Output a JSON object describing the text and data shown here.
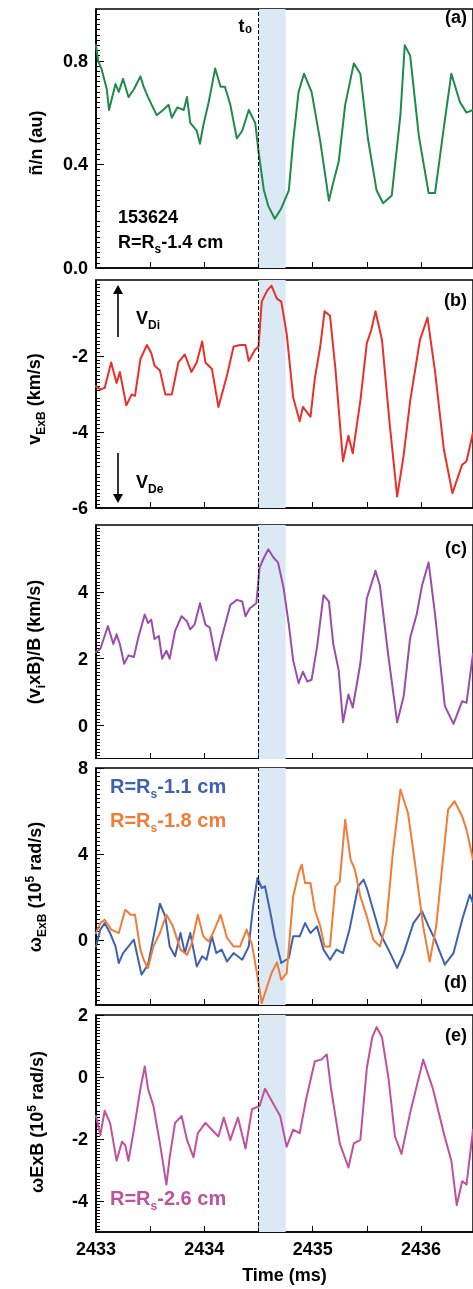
{
  "chart_data": [
    {
      "type": "line",
      "ylabel": "ñ/n (au)",
      "annotations": [
        "(a)",
        "153624",
        "R=R$_{s}$-1.4 cm"
      ],
      "marker": "none",
      "line_style": "solid",
      "tick_labels": "y",
      "xlim": [
        2433,
        2436.48
      ],
      "xticks": [
        2433,
        {
          "value": 2433.5,
          "label": null
        },
        2434,
        {
          "value": 2434.5,
          "label": null
        },
        2435,
        {
          "value": 2435.5,
          "label": null
        },
        2436
      ],
      "ylim": [
        0,
        1.0
      ],
      "yticks": [
        {
          "value": 0,
          "label": "0.0"
        },
        0.4,
        0.8
      ],
      "ref_lines": [
        {
          "axis": "x",
          "value": 2434.5,
          "label": "t₀",
          "color": "#000000",
          "line_style": "dashed"
        }
      ],
      "bands": [
        {
          "axis": "x",
          "from": 2434.5,
          "to": 2434.75,
          "color": "#dbe9f5"
        }
      ],
      "series": [
        {
          "color": "#1f8a4c",
          "x": [
            2433,
            2433.02,
            2433.05,
            2433.1,
            2433.12,
            2433.15,
            2433.18,
            2433.21,
            2433.25,
            2433.3,
            2433.35,
            2433.41,
            2433.44,
            2433.48,
            2433.56,
            2433.62,
            2433.67,
            2433.7,
            2433.75,
            2433.81,
            2433.84,
            2433.87,
            2433.93,
            2433.96,
            2433.99,
            2434.04,
            2434.1,
            2434.15,
            2434.19,
            2434.24,
            2434.3,
            2434.35,
            2434.41,
            2434.47,
            2434.5,
            2434.55,
            2434.59,
            2434.65,
            2434.71,
            2434.78,
            2434.82,
            2434.87,
            2434.92,
            2434.99,
            2435.07,
            2435.15,
            2435.19,
            2435.24,
            2435.3,
            2435.38,
            2435.44,
            2435.51,
            2435.59,
            2435.65,
            2435.73,
            2435.81,
            2435.85,
            2435.9,
            2435.98,
            2436.07,
            2436.13,
            2436.21,
            2436.28,
            2436.36,
            2436.42,
            2436.48
          ],
          "values": [
            0.86,
            0.8,
            0.77,
            0.69,
            0.61,
            0.66,
            0.71,
            0.68,
            0.73,
            0.66,
            0.69,
            0.74,
            0.7,
            0.66,
            0.59,
            0.61,
            0.63,
            0.58,
            0.62,
            0.61,
            0.66,
            0.56,
            0.53,
            0.48,
            0.55,
            0.64,
            0.77,
            0.7,
            0.7,
            0.63,
            0.5,
            0.53,
            0.61,
            0.56,
            0.45,
            0.3,
            0.24,
            0.19,
            0.23,
            0.3,
            0.49,
            0.68,
            0.75,
            0.68,
            0.49,
            0.26,
            0.33,
            0.41,
            0.63,
            0.79,
            0.75,
            0.5,
            0.3,
            0.25,
            0.28,
            0.59,
            0.86,
            0.82,
            0.51,
            0.29,
            0.29,
            0.54,
            0.75,
            0.64,
            0.6,
            0.61
          ]
        }
      ]
    },
    {
      "type": "line",
      "ylabel": "v$_{ExB}$ (km/s)",
      "annotations": [
        "(b)",
        "V$_{Di}$",
        "V$_{De}$"
      ],
      "marker": "none",
      "line_style": "solid",
      "tick_labels": "y",
      "xlim": [
        2433,
        2436.48
      ],
      "xticks": [
        2433,
        {
          "value": 2433.5,
          "label": null
        },
        2434,
        {
          "value": 2434.5,
          "label": null
        },
        2435,
        {
          "value": 2435.5,
          "label": null
        },
        2436
      ],
      "ylim": [
        -6,
        0
      ],
      "yticks": [
        -6,
        -4,
        -2
      ],
      "ref_lines": [
        {
          "axis": "x",
          "value": 2434.5,
          "color": "#000000",
          "line_style": "dashed"
        }
      ],
      "bands": [
        {
          "axis": "x",
          "from": 2434.5,
          "to": 2434.75,
          "color": "#dbe9f5"
        }
      ],
      "series": [
        {
          "color": "#e8312a",
          "x": [
            2433,
            2433.04,
            2433.08,
            2433.14,
            2433.19,
            2433.22,
            2433.28,
            2433.33,
            2433.36,
            2433.41,
            2433.47,
            2433.51,
            2433.54,
            2433.59,
            2433.64,
            2433.7,
            2433.76,
            2433.82,
            2433.88,
            2433.93,
            2433.98,
            2434.01,
            2434.07,
            2434.13,
            2434.21,
            2434.27,
            2434.33,
            2434.38,
            2434.41,
            2434.47,
            2434.5,
            2434.53,
            2434.58,
            2434.62,
            2434.67,
            2434.71,
            2434.76,
            2434.82,
            2434.88,
            2434.91,
            2434.98,
            2435.02,
            2435.07,
            2435.11,
            2435.16,
            2435.21,
            2435.28,
            2435.33,
            2435.37,
            2435.44,
            2435.5,
            2435.54,
            2435.58,
            2435.64,
            2435.71,
            2435.78,
            2435.84,
            2435.9,
            2435.99,
            2436.06,
            2436.13,
            2436.21,
            2436.29,
            2436.38,
            2436.42,
            2436.48
          ],
          "values": [
            -2.8,
            -2.88,
            -2.84,
            -2.17,
            -2.71,
            -2.42,
            -3.3,
            -3.01,
            -3.05,
            -2.08,
            -1.71,
            -1.92,
            -2.25,
            -2.38,
            -3.01,
            -3.01,
            -2.17,
            -1.96,
            -2.42,
            -2.17,
            -1.62,
            -2.17,
            -2.34,
            -3.34,
            -2.5,
            -1.75,
            -1.71,
            -1.71,
            -2.13,
            -1.83,
            -1.75,
            -0.57,
            -0.28,
            -0.15,
            -0.49,
            -0.57,
            -1.41,
            -3.09,
            -3.72,
            -3.34,
            -3.6,
            -2.59,
            -1.75,
            -0.82,
            -0.94,
            -2.34,
            -4.77,
            -4.1,
            -4.56,
            -3.18,
            -1.66,
            -1.33,
            -0.82,
            -1.58,
            -3.76,
            -5.7,
            -4.61,
            -3.18,
            -1.58,
            -0.99,
            -2.42,
            -4.44,
            -5.61,
            -4.86,
            -4.77,
            -4.02
          ]
        }
      ]
    },
    {
      "type": "line",
      "ylabel": "(v$_{i}$xB)/B (km/s)",
      "annotations": [
        "(c)"
      ],
      "marker": "none",
      "line_style": "solid",
      "tick_labels": "y",
      "xlim": [
        2433,
        2436.48
      ],
      "xticks": [
        2433,
        {
          "value": 2433.5,
          "label": null
        },
        2434,
        {
          "value": 2434.5,
          "label": null
        },
        2435,
        {
          "value": 2435.5,
          "label": null
        },
        2436
      ],
      "ylim": [
        -1,
        6
      ],
      "yticks": [
        0,
        2,
        4
      ],
      "ref_lines": [
        {
          "axis": "x",
          "value": 2434.5,
          "color": "#000000",
          "line_style": "dashed"
        }
      ],
      "bands": [
        {
          "axis": "x",
          "from": 2434.5,
          "to": 2434.75,
          "color": "#dbe9f5"
        }
      ],
      "series": [
        {
          "color": "#9b4dab",
          "x": [
            2433,
            2433.04,
            2433.11,
            2433.16,
            2433.19,
            2433.22,
            2433.26,
            2433.3,
            2433.35,
            2433.39,
            2433.45,
            2433.48,
            2433.51,
            2433.54,
            2433.58,
            2433.61,
            2433.65,
            2433.68,
            2433.73,
            2433.79,
            2433.84,
            2433.87,
            2433.91,
            2433.96,
            2434.01,
            2434.05,
            2434.11,
            2434.16,
            2434.24,
            2434.3,
            2434.35,
            2434.38,
            2434.42,
            2434.48,
            2434.51,
            2434.55,
            2434.59,
            2434.64,
            2434.68,
            2434.73,
            2434.78,
            2434.82,
            2434.87,
            2434.91,
            2434.95,
            2434.99,
            2435.04,
            2435.1,
            2435.15,
            2435.19,
            2435.24,
            2435.28,
            2435.33,
            2435.37,
            2435.44,
            2435.5,
            2435.58,
            2435.62,
            2435.7,
            2435.78,
            2435.84,
            2435.9,
            2435.96,
            2436.01,
            2436.07,
            2436.13,
            2436.22,
            2436.3,
            2436.38,
            2436.42,
            2436.48
          ],
          "values": [
            2.2,
            2.29,
            2.98,
            2.44,
            2.73,
            2.44,
            1.85,
            2.1,
            2.05,
            2.63,
            3.32,
            3.07,
            3.17,
            2.59,
            2.68,
            2.0,
            2.24,
            2.0,
            2.83,
            3.27,
            3.12,
            2.88,
            3.02,
            3.66,
            3.02,
            2.93,
            1.95,
            2.63,
            3.61,
            3.76,
            3.71,
            3.27,
            3.51,
            3.66,
            4.73,
            5.02,
            5.27,
            5.02,
            4.88,
            4.15,
            3.02,
            1.95,
            1.27,
            1.61,
            1.32,
            1.37,
            2.34,
            3.9,
            3.71,
            2.44,
            1.66,
            0.1,
            0.93,
            0.54,
            1.85,
            3.8,
            4.63,
            4.2,
            2.05,
            0.1,
            0.88,
            2.63,
            3.32,
            4.2,
            4.88,
            3.32,
            0.59,
            0.05,
            0.73,
            0.68,
            2.15
          ]
        }
      ]
    },
    {
      "type": "line",
      "ylabel": "ω$_{ExB}$ (10$^{5}$ rad/s)",
      "annotations": [
        "(d)"
      ],
      "marker": "none",
      "line_style": "solid",
      "tick_labels": "y",
      "legend": "top left",
      "xlim": [
        2433,
        2436.48
      ],
      "xticks": [
        2433,
        {
          "value": 2433.5,
          "label": null
        },
        2434,
        {
          "value": 2434.5,
          "label": null
        },
        2435,
        {
          "value": 2435.5,
          "label": null
        },
        2436
      ],
      "ylim": [
        -3,
        8
      ],
      "yticks": [
        0,
        4,
        8
      ],
      "ref_lines": [
        {
          "axis": "x",
          "value": 2434.5,
          "color": "#000000",
          "line_style": "dashed"
        }
      ],
      "bands": [
        {
          "axis": "x",
          "from": 2434.5,
          "to": 2434.75,
          "color": "#dbe9f5"
        }
      ],
      "series": [
        {
          "name": "R=R$_{s}$-1.1 cm",
          "color": "#3f62b0",
          "x": [
            2433,
            2433.04,
            2433.08,
            2433.13,
            2433.18,
            2433.21,
            2433.25,
            2433.3,
            2433.35,
            2433.39,
            2433.42,
            2433.48,
            2433.55,
            2433.59,
            2433.64,
            2433.68,
            2433.73,
            2433.78,
            2433.82,
            2433.87,
            2433.93,
            2433.98,
            2434.02,
            2434.07,
            2434.11,
            2434.16,
            2434.21,
            2434.27,
            2434.35,
            2434.41,
            2434.45,
            2434.49,
            2434.53,
            2434.56,
            2434.61,
            2434.65,
            2434.71,
            2434.78,
            2434.82,
            2434.88,
            2434.93,
            2434.98,
            2435.04,
            2435.1,
            2435.16,
            2435.22,
            2435.28,
            2435.34,
            2435.42,
            2435.47,
            2435.5,
            2435.54,
            2435.62,
            2435.7,
            2435.78,
            2435.84,
            2435.93,
            2436.01,
            2436.07,
            2436.13,
            2436.22,
            2436.3,
            2436.38,
            2436.45,
            2436.48
          ],
          "values": [
            -0.28,
            0.5,
            0.8,
            0.34,
            -0.28,
            -1.05,
            -0.59,
            -0.28,
            0.03,
            -0.9,
            -1.59,
            -1.13,
            0.65,
            1.7,
            1.11,
            -0.28,
            -0.74,
            0.34,
            -0.59,
            0.34,
            -1.21,
            -0.74,
            -0.9,
            0.19,
            -0.59,
            -0.43,
            -0.98,
            -0.59,
            -0.9,
            -0.28,
            1.58,
            2.89,
            2.43,
            2.51,
            1.27,
            0.19,
            -1.05,
            -0.82,
            0.19,
            0.19,
            0.8,
            0.34,
            0.65,
            -0.43,
            -0.9,
            -0.43,
            -0.59,
            0.5,
            2.51,
            2.82,
            2.43,
            1.73,
            0.34,
            -0.43,
            -1.28,
            -0.59,
            0.8,
            1.35,
            0.65,
            0.03,
            -1.13,
            -0.59,
            0.96,
            2.12,
            1.73
          ]
        },
        {
          "name": "R=R$_{s}$-1.8 cm",
          "color": "#f07c36",
          "x": [
            2433,
            2433.04,
            2433.08,
            2433.14,
            2433.21,
            2433.27,
            2433.32,
            2433.36,
            2433.41,
            2433.44,
            2433.48,
            2433.53,
            2433.59,
            2433.65,
            2433.71,
            2433.78,
            2433.84,
            2433.88,
            2433.94,
            2433.99,
            2434.04,
            2434.08,
            2434.15,
            2434.21,
            2434.27,
            2434.33,
            2434.39,
            2434.44,
            2434.48,
            2434.53,
            2434.58,
            2434.62,
            2434.67,
            2434.71,
            2434.76,
            2434.82,
            2434.87,
            2434.9,
            2434.93,
            2434.98,
            2435.02,
            2435.07,
            2435.11,
            2435.16,
            2435.21,
            2435.25,
            2435.3,
            2435.35,
            2435.39,
            2435.44,
            2435.5,
            2435.56,
            2435.62,
            2435.68,
            2435.74,
            2435.81,
            2435.88,
            2435.94,
            2436.02,
            2436.08,
            2436.14,
            2436.19,
            2436.25,
            2436.31,
            2436.38,
            2436.42,
            2436.48
          ],
          "values": [
            0.34,
            0.8,
            0.96,
            0.5,
            0.34,
            1.42,
            1.19,
            1.19,
            -0.43,
            -0.9,
            -1.28,
            -0.28,
            0.34,
            1.19,
            0.65,
            -0.43,
            -0.67,
            -0.2,
            1.19,
            0.19,
            -0.05,
            0.34,
            1.19,
            0.11,
            -0.28,
            -0.28,
            0.5,
            -0.2,
            -1.36,
            -2.91,
            -2.14,
            -1.52,
            -1.02,
            -1.83,
            -1.52,
            2.04,
            3.13,
            3.51,
            2.66,
            2.66,
            1.42,
            0.65,
            -0.28,
            -0.28,
            2.51,
            2.74,
            5.6,
            3.75,
            3.28,
            2.04,
            1.11,
            0.03,
            -0.28,
            0.8,
            4.06,
            7.0,
            5.91,
            3.75,
            0.65,
            -0.98,
            0.65,
            3.13,
            6.07,
            6.46,
            5.76,
            5.14,
            3.75
          ]
        }
      ]
    },
    {
      "type": "line",
      "ylabel": "ωExB (10$^{5}$ rad/s)",
      "xlabel": "Time (ms)",
      "annotations": [
        "(e)"
      ],
      "marker": "none",
      "line_style": "solid",
      "legend": "bottom left",
      "xlim": [
        2433,
        2436.48
      ],
      "xticks": [
        2433,
        {
          "value": 2433.5,
          "label": null
        },
        2434,
        {
          "value": 2434.5,
          "label": null
        },
        2435,
        {
          "value": 2435.5,
          "label": null
        },
        2436
      ],
      "ylim": [
        -5,
        2
      ],
      "yticks": [
        -4,
        -2,
        0,
        2
      ],
      "ref_lines": [
        {
          "axis": "x",
          "value": 2434.5,
          "color": "#000000",
          "line_style": "dashed"
        }
      ],
      "bands": [
        {
          "axis": "x",
          "from": 2434.5,
          "to": 2434.75,
          "color": "#dbe9f5"
        }
      ],
      "series": [
        {
          "name": "R=R$_{s}$-2.6 cm",
          "color": "#c050a0",
          "x": [
            2433,
            2433.04,
            2433.08,
            2433.13,
            2433.19,
            2433.24,
            2433.27,
            2433.3,
            2433.35,
            2433.41,
            2433.45,
            2433.48,
            2433.53,
            2433.59,
            2433.65,
            2433.68,
            2433.73,
            2433.79,
            2433.84,
            2433.9,
            2433.94,
            2434.01,
            2434.07,
            2434.13,
            2434.18,
            2434.24,
            2434.31,
            2434.38,
            2434.44,
            2434.51,
            2434.56,
            2434.62,
            2434.7,
            2434.76,
            2434.82,
            2434.88,
            2434.94,
            2435.02,
            2435.08,
            2435.13,
            2435.17,
            2435.25,
            2435.33,
            2435.38,
            2435.44,
            2435.5,
            2435.55,
            2435.59,
            2435.64,
            2435.7,
            2435.76,
            2435.82,
            2435.9,
            2436.02,
            2436.11,
            2436.21,
            2436.28,
            2436.33,
            2436.38,
            2436.42,
            2436.48
          ],
          "values": [
            -1.26,
            -1.87,
            -1.09,
            -1.48,
            -2.7,
            -2.09,
            -2.2,
            -2.7,
            -1.7,
            -0.38,
            0.34,
            -0.38,
            -0.93,
            -2.14,
            -3.47,
            -2.59,
            -1.48,
            -1.26,
            -2.03,
            -2.59,
            -1.81,
            -1.48,
            -1.7,
            -1.92,
            -1.31,
            -2.03,
            -1.31,
            -2.31,
            -1.04,
            -0.93,
            -0.38,
            -0.76,
            -1.26,
            -2.25,
            -1.7,
            -1.81,
            -0.71,
            0.51,
            0.56,
            0.73,
            -0.38,
            -2.14,
            -2.92,
            -2.14,
            -2.03,
            0.29,
            1.28,
            1.61,
            1.28,
            -0.04,
            -1.92,
            -2.48,
            -1.15,
            0.56,
            -0.38,
            -1.81,
            -2.7,
            -4.13,
            -3.36,
            -3.47,
            -1.7
          ]
        }
      ]
    }
  ]
}
